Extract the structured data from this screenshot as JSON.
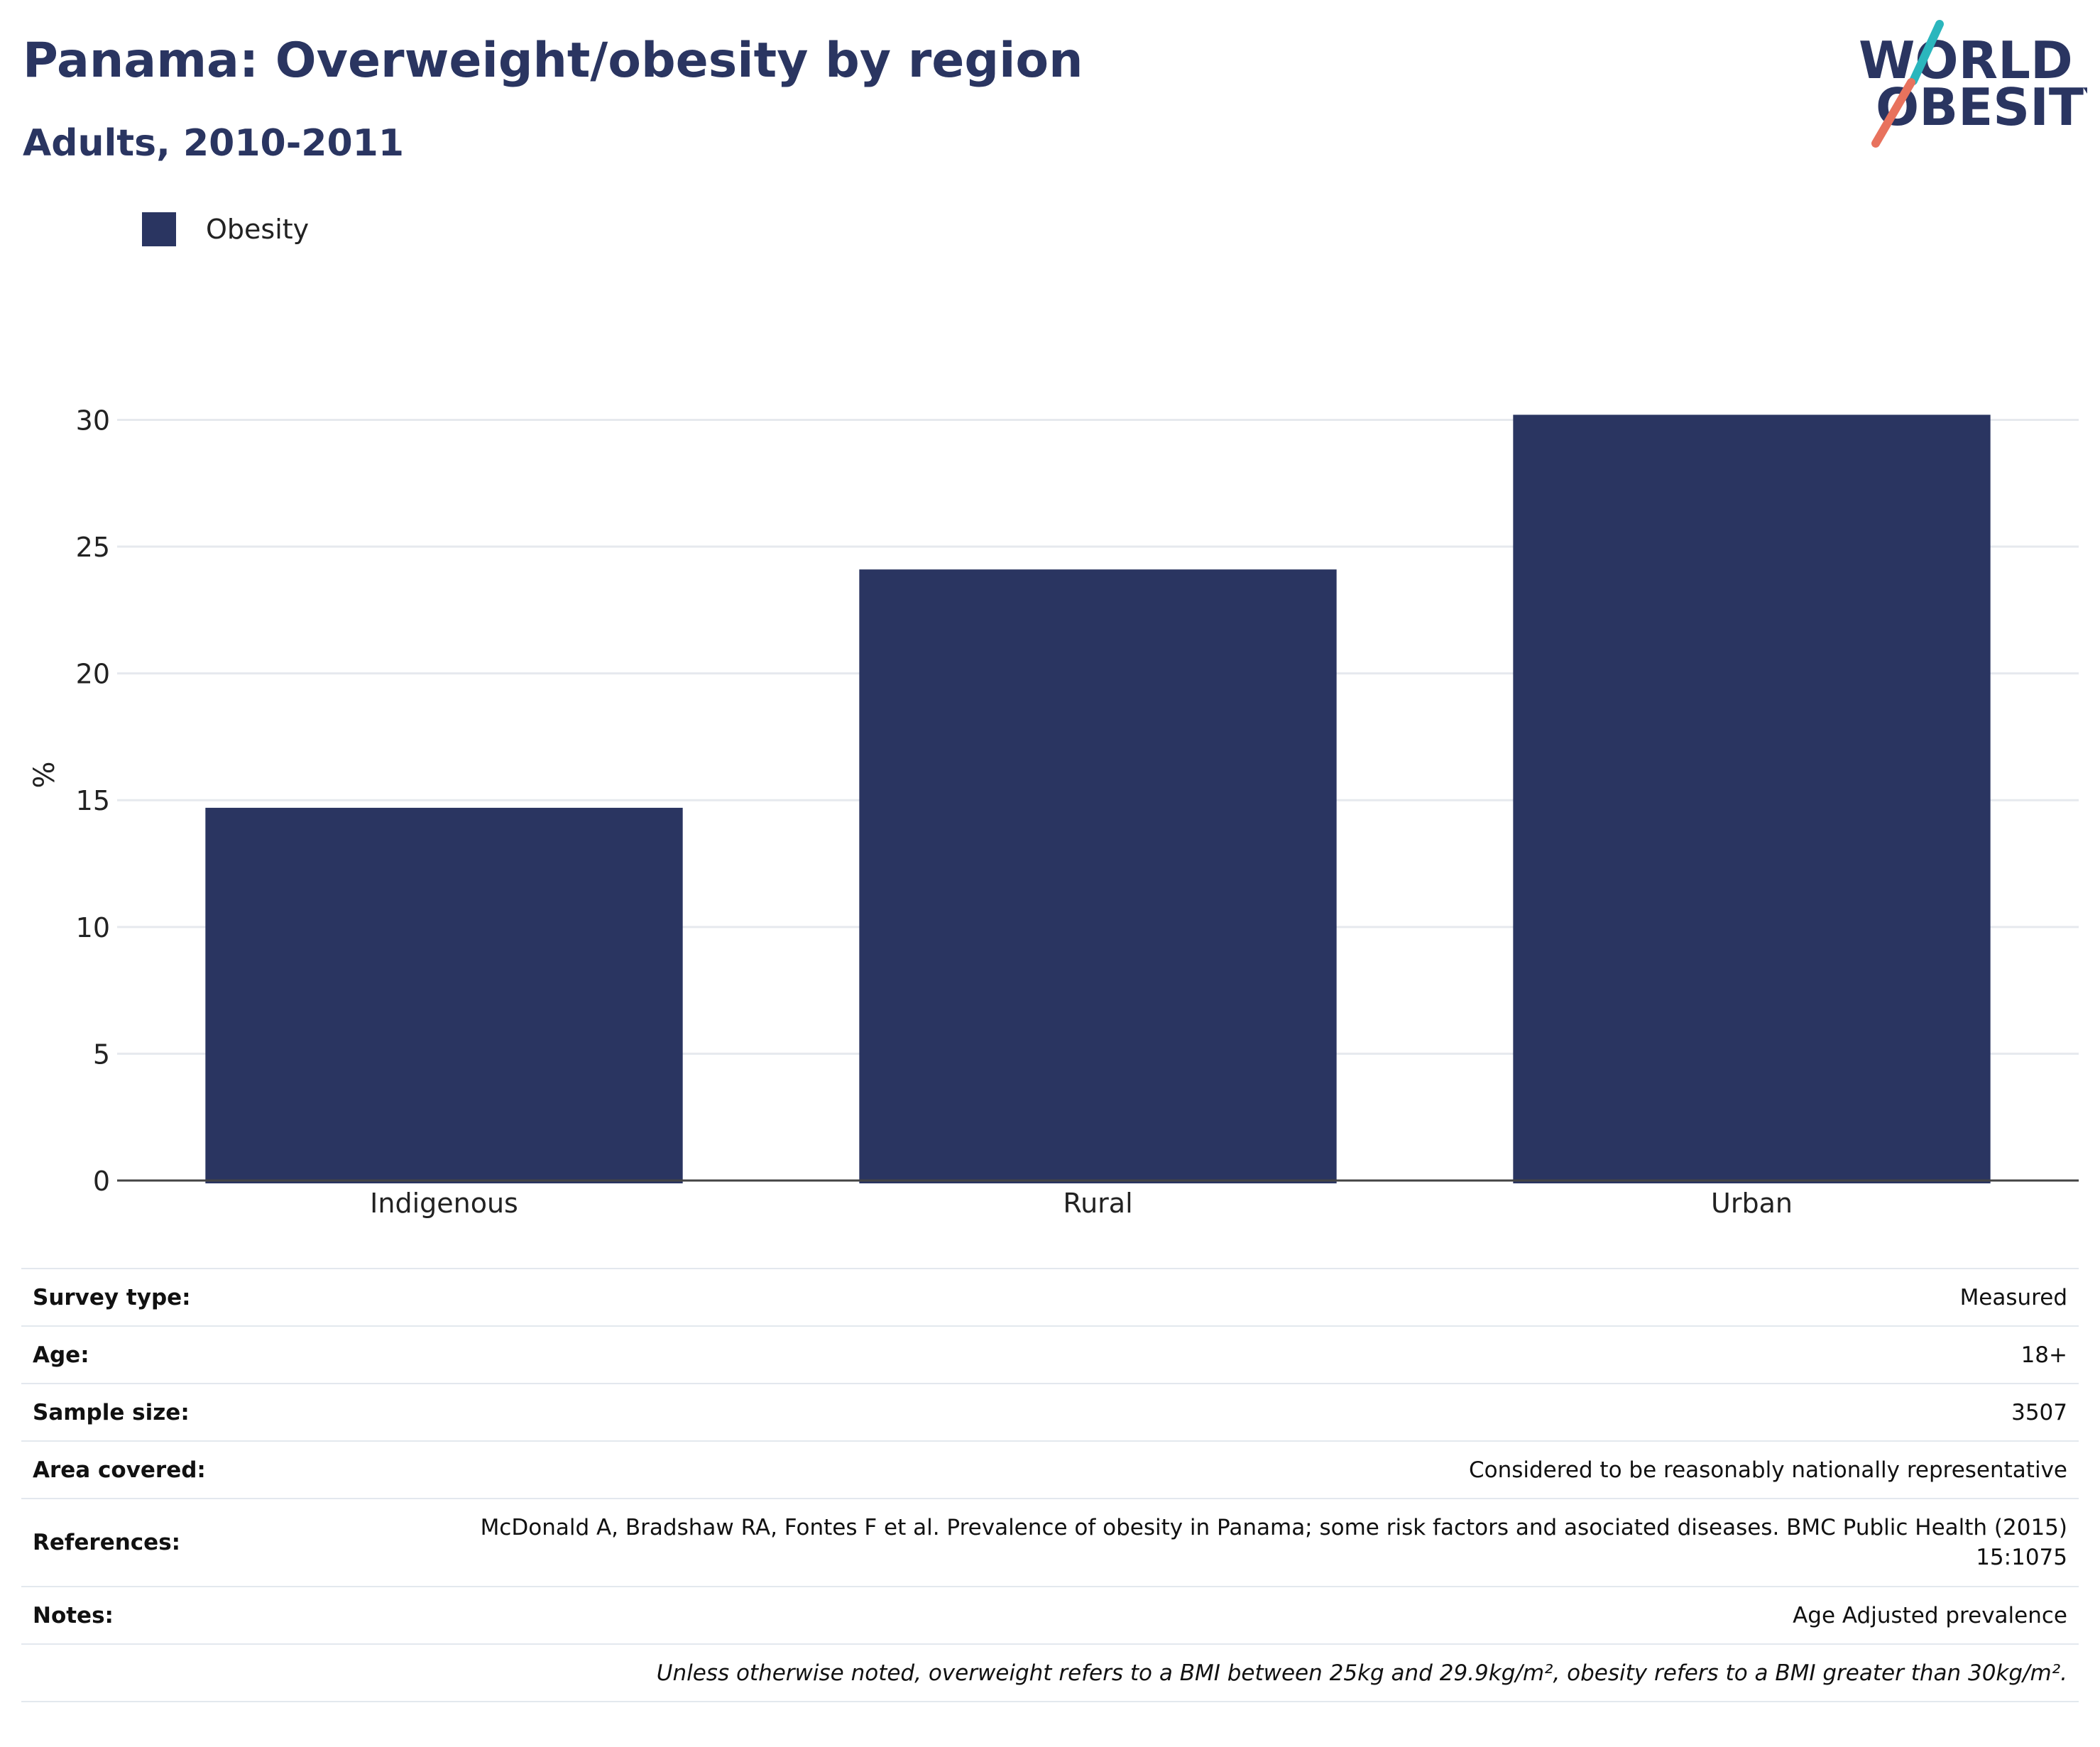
{
  "header": {
    "title": "Panama: Overweight/obesity by region",
    "subtitle": "Adults, 2010-2011"
  },
  "logo": {
    "line1": "WORLD",
    "line2": "OBESITY",
    "colors": {
      "navy": "#2a3561",
      "teal": "#2bb6bd",
      "coral": "#e8725d"
    }
  },
  "colors": {
    "bar": "#2a3561",
    "grid": "#e6e9ee",
    "axis": "#444444"
  },
  "chart_data": {
    "type": "bar",
    "categories": [
      "Indigenous",
      "Rural",
      "Urban"
    ],
    "series": [
      {
        "name": "Obesity",
        "values": [
          14.7,
          24.1,
          30.2
        ]
      }
    ],
    "ylabel": "%",
    "ylim": [
      0,
      32
    ],
    "yticks": [
      0,
      5,
      10,
      15,
      20,
      25,
      30
    ],
    "grid": true,
    "legend": "top-left"
  },
  "info": {
    "rows": [
      {
        "key": "Survey type:",
        "value": "Measured"
      },
      {
        "key": "Age:",
        "value": "18+"
      },
      {
        "key": "Sample size:",
        "value": "3507"
      },
      {
        "key": "Area covered:",
        "value": "Considered to be reasonably nationally representative"
      },
      {
        "key": "References:",
        "value": "McDonald A, Bradshaw RA, Fontes F et al. Prevalence of obesity in Panama; some risk factors and asociated diseases. BMC Public Health (2015) 15:1075"
      },
      {
        "key": "Notes:",
        "value": "Age Adjusted prevalence"
      }
    ],
    "footnote": "Unless otherwise noted, overweight refers to a BMI between 25kg and 29.9kg/m², obesity refers to a BMI greater than 30kg/m²."
  }
}
